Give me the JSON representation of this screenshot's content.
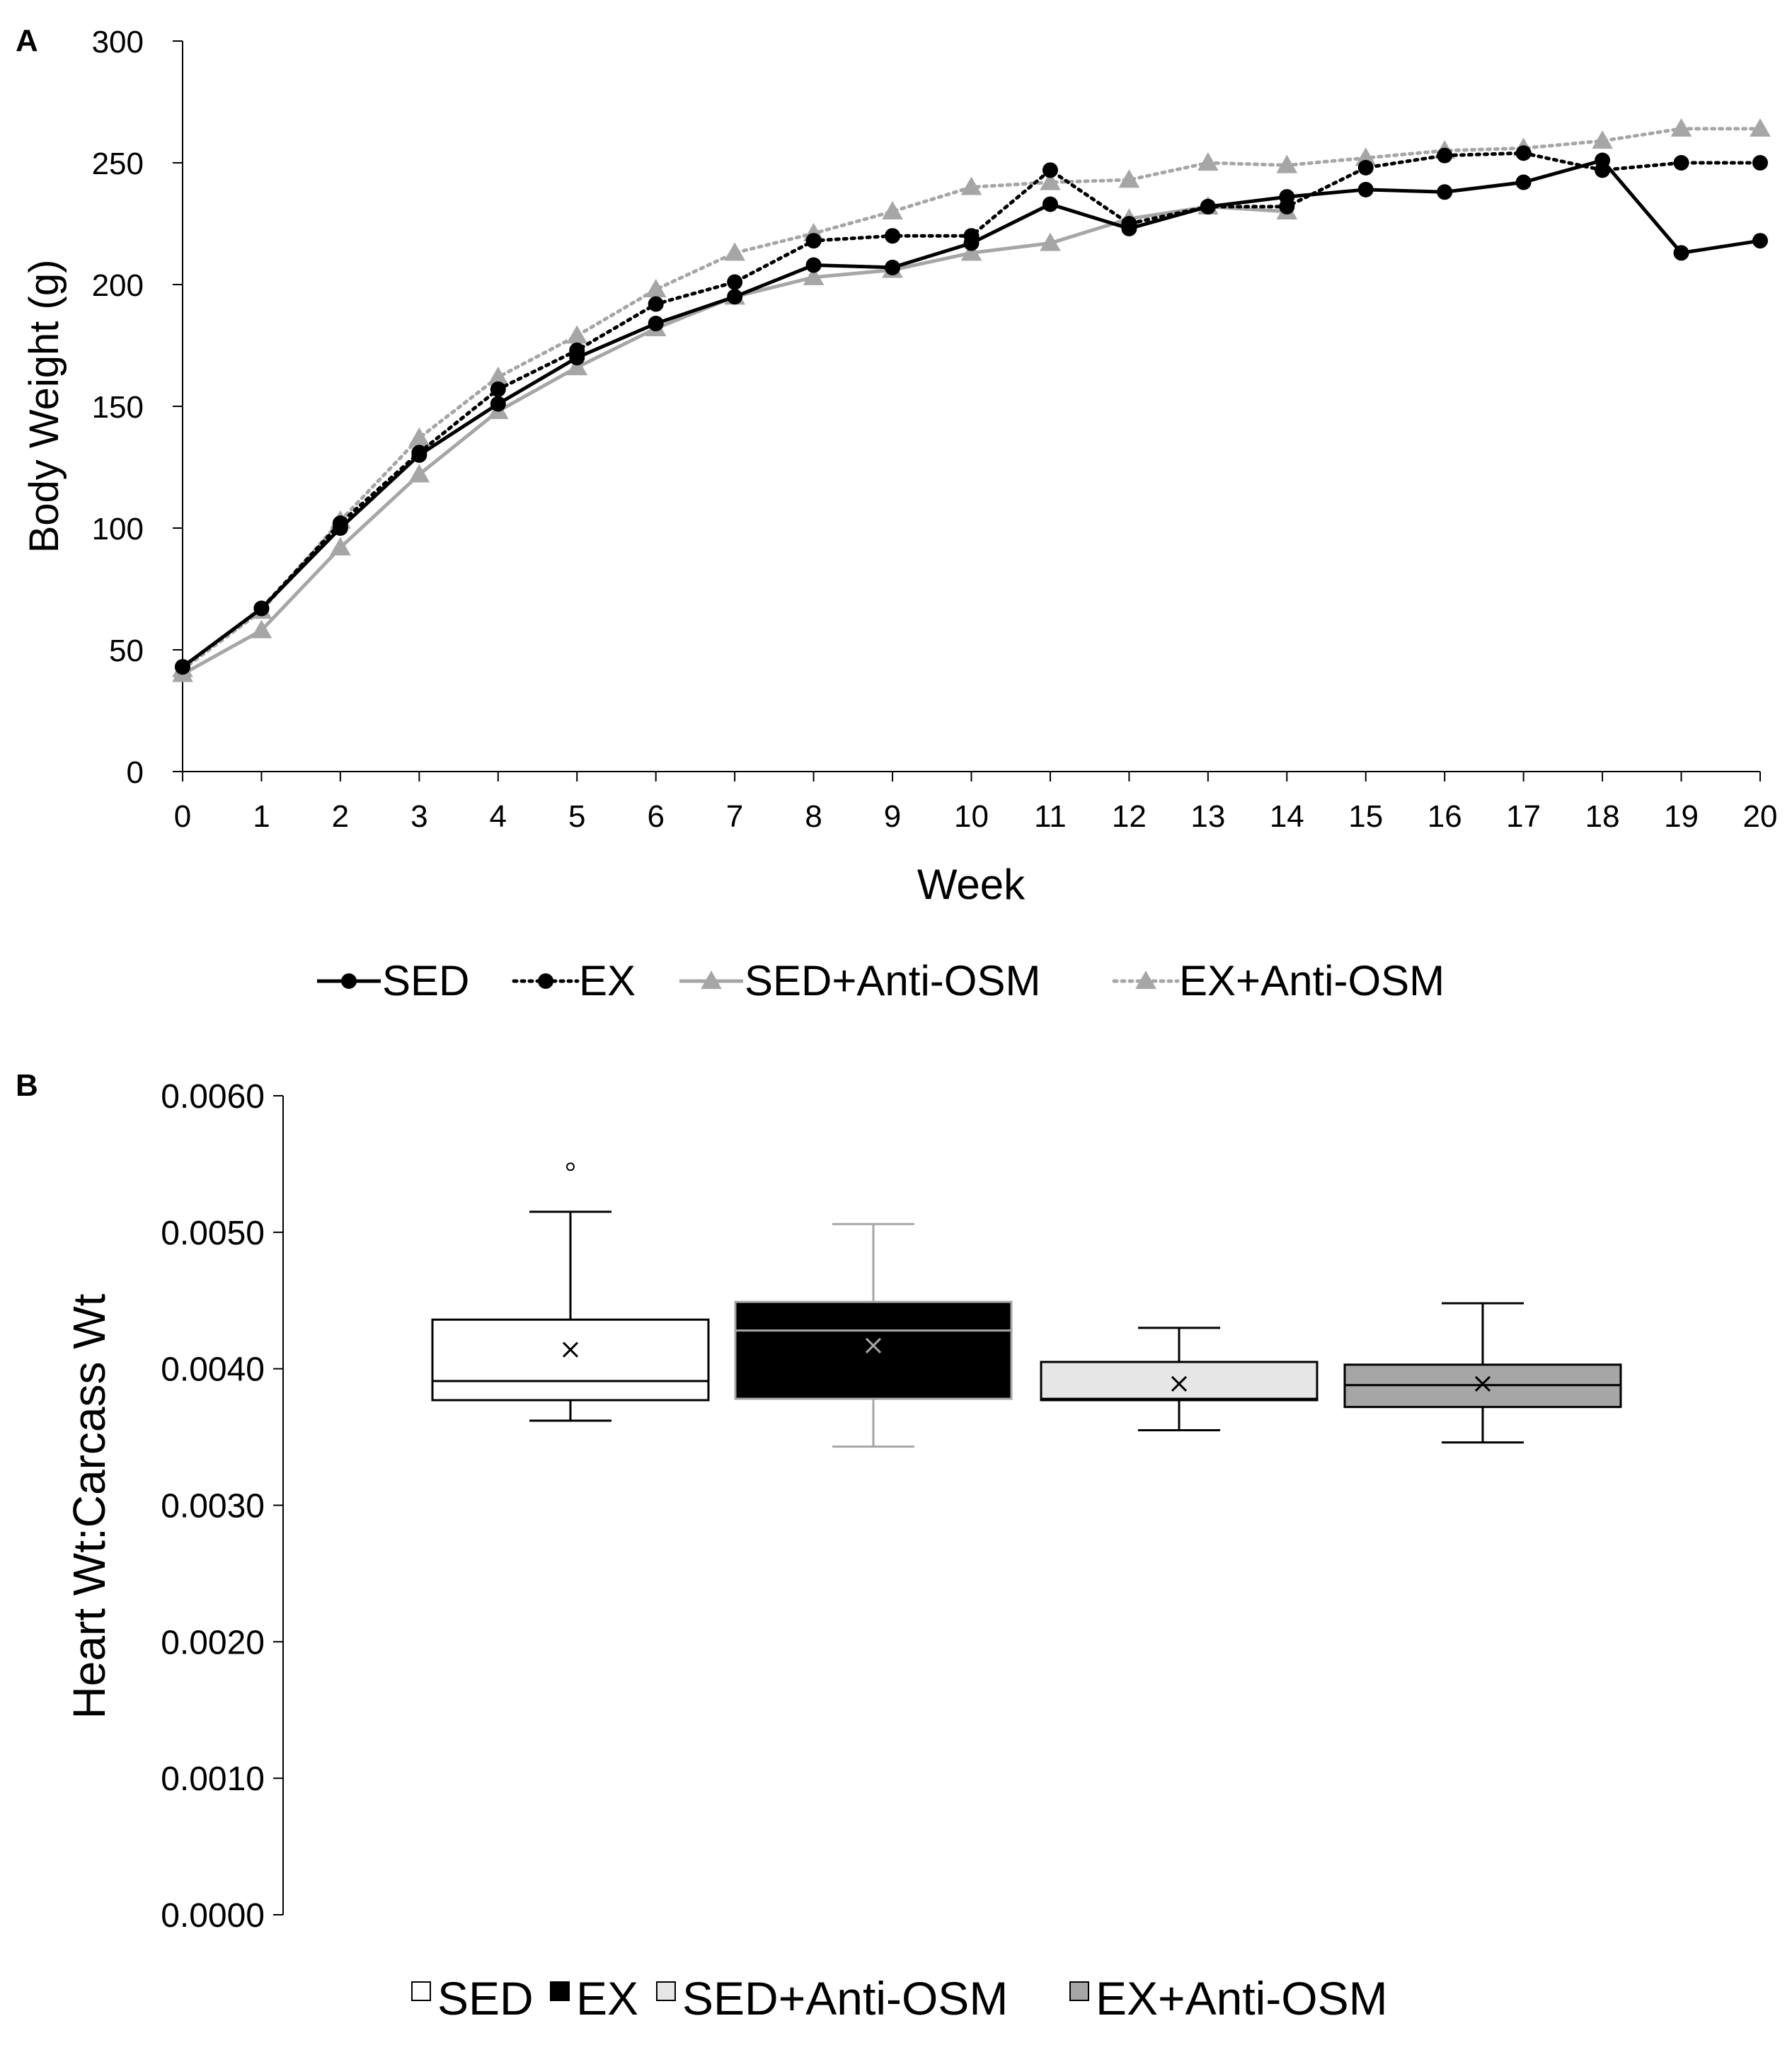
{
  "chart_data": [
    {
      "panel": "A",
      "type": "line",
      "xlabel": "Week",
      "ylabel": "Body Weight (g)",
      "ylim": [
        0,
        300
      ],
      "yticks": [
        0,
        50,
        100,
        150,
        200,
        250,
        300
      ],
      "x": [
        0,
        1,
        2,
        3,
        4,
        5,
        6,
        7,
        8,
        9,
        10,
        11,
        12,
        13,
        14,
        15,
        16,
        17,
        18,
        19,
        20
      ],
      "series": [
        {
          "name": "SED",
          "color": "#000000",
          "dash": "solid",
          "marker": "circle",
          "values": [
            43,
            67,
            100,
            130,
            151,
            170,
            184,
            195,
            208,
            207,
            217,
            233,
            223,
            232,
            236,
            239,
            238,
            242,
            251,
            213,
            218
          ]
        },
        {
          "name": "EX",
          "color": "#000000",
          "dash": "dotted",
          "marker": "circle",
          "values": [
            43,
            67,
            102,
            131,
            157,
            173,
            192,
            201,
            218,
            220,
            220,
            247,
            225,
            232,
            232,
            248,
            253,
            254,
            247,
            250,
            250
          ]
        },
        {
          "name": "SED+Anti-OSM",
          "color": "#a6a6a6",
          "dash": "solid",
          "marker": "triangle",
          "values": [
            40,
            58,
            92,
            122,
            148,
            166,
            182,
            195,
            203,
            206,
            213,
            217,
            227,
            232,
            230,
            null,
            null,
            null,
            null,
            null,
            null
          ]
        },
        {
          "name": "EX+Anti-OSM",
          "color": "#a6a6a6",
          "dash": "dotted",
          "marker": "triangle",
          "values": [
            42,
            66,
            103,
            137,
            162,
            179,
            198,
            213,
            221,
            230,
            240,
            242,
            243,
            250,
            249,
            252,
            255,
            256,
            259,
            264,
            264
          ]
        }
      ],
      "legend": "bottom"
    },
    {
      "panel": "B",
      "type": "box",
      "xlabel": "",
      "ylabel": "Heart Wt:Carcass Wt",
      "ylim": [
        0,
        0.006
      ],
      "yticks": [
        "0.0000",
        "0.0010",
        "0.0020",
        "0.0030",
        "0.0040",
        "0.0050",
        "0.0060"
      ],
      "categories": [
        "SED",
        "EX",
        "SED+Anti-OSM",
        "EX+Anti-OSM"
      ],
      "boxes": [
        {
          "name": "SED",
          "fill": "#ffffff",
          "line": "#000000",
          "inner": "#000000",
          "min": 0.00362,
          "q1": 0.00377,
          "median": 0.00391,
          "q3": 0.00436,
          "max": 0.00515,
          "mean": 0.00414,
          "outliers": [
            0.00548
          ]
        },
        {
          "name": "EX",
          "fill": "#000000",
          "line": "#a6a6a6",
          "inner": "#a6a6a6",
          "min": 0.00343,
          "q1": 0.00378,
          "median": 0.00428,
          "q3": 0.00449,
          "max": 0.00506,
          "mean": 0.00417,
          "outliers": []
        },
        {
          "name": "SED+Anti-OSM",
          "fill": "#e7e6e6",
          "line": "#000000",
          "inner": "#000000",
          "min": 0.00355,
          "q1": 0.00377,
          "median": 0.00378,
          "q3": 0.00405,
          "max": 0.0043,
          "mean": 0.00389,
          "outliers": []
        },
        {
          "name": "EX+Anti-OSM",
          "fill": "#a6a6a6",
          "line": "#000000",
          "inner": "#000000",
          "min": 0.00346,
          "q1": 0.00372,
          "median": 0.00388,
          "q3": 0.00403,
          "max": 0.00448,
          "mean": 0.00389,
          "outliers": []
        }
      ],
      "legend": "bottom"
    }
  ]
}
